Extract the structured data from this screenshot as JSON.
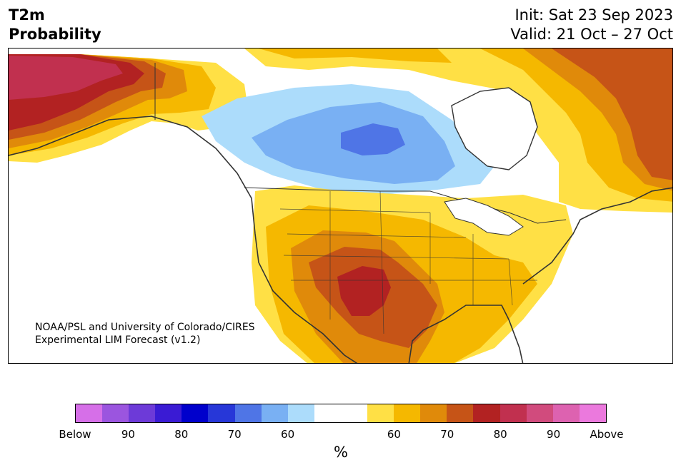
{
  "header": {
    "title_line1": "T2m",
    "title_line2": "Probability",
    "init": "Init: Sat 23 Sep 2023",
    "valid": "Valid: 21 Oct – 27 Oct"
  },
  "credit": {
    "line1": "NOAA/PSL and University of Colorado/CIRES",
    "line2": "Experimental LIM Forecast (v1.2)"
  },
  "colorbar": {
    "colors": [
      "#d66fe8",
      "#9b55df",
      "#6d3ad8",
      "#3a1bd4",
      "#0000cc",
      "#2737d8",
      "#4f75e6",
      "#79b0f3",
      "#acdcfb",
      "#ffffff",
      "#ffffff",
      "#ffe045",
      "#f5b800",
      "#e08a0a",
      "#c65417",
      "#b22222",
      "#c1304f",
      "#d14b7d",
      "#dd62b0",
      "#eb79dd"
    ],
    "tick_labels": [
      "Below",
      "90",
      "80",
      "70",
      "60",
      "60",
      "70",
      "80",
      "90",
      "Above"
    ],
    "unit": "%"
  },
  "map": {
    "region": "North America",
    "colors": {
      "above_60": "#ffe045",
      "above_65": "#f5b800",
      "above_70": "#e08a0a",
      "above_75": "#c65417",
      "above_80": "#b22222",
      "above_85": "#c1304f",
      "below_60": "#acdcfb",
      "below_65": "#79b0f3",
      "below_75": "#4f75e6",
      "coast": "#333333"
    }
  }
}
